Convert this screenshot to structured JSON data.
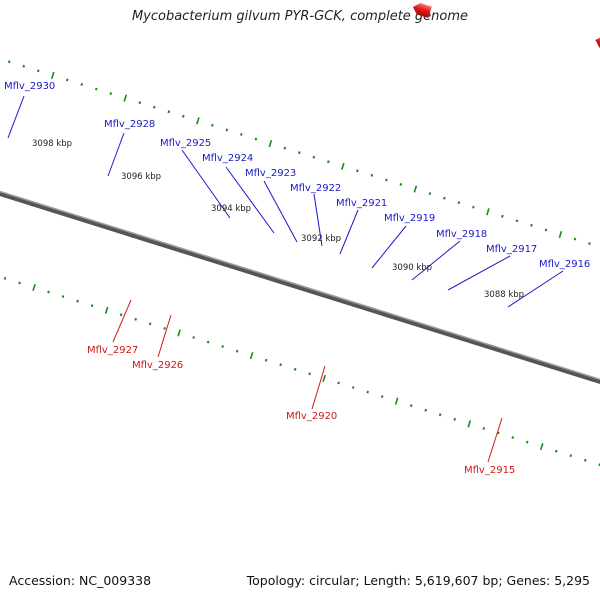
{
  "title": "Mycobacterium gilvum PYR-GCK, complete genome",
  "footer": {
    "accession": "Accession: NC_009338",
    "summary": "Topology: circular; Length: 5,619,607 bp; Genes: 5,295"
  },
  "colors": {
    "forward_gene": "#1a1ae6",
    "reverse_gene": "#e61a1a",
    "forward_label": "#1a1acc",
    "reverse_label": "#cc1a1a",
    "backbone": "#777777",
    "tick": "#1a8a1a"
  },
  "position_markers": [
    "3098 kbp",
    "3096 kbp",
    "3094 kbp",
    "3092 kbp",
    "3090 kbp",
    "3088 kbp"
  ],
  "gene_labels": {
    "forward": [
      "Mflv_2930",
      "Mflv_2928",
      "Mflv_2925",
      "Mflv_2924",
      "Mflv_2923",
      "Mflv_2922",
      "Mflv_2921",
      "Mflv_2919",
      "Mflv_2918",
      "Mflv_2917",
      "Mflv_2916"
    ],
    "reverse": [
      "Mflv_2927",
      "Mflv_2926",
      "Mflv_2920",
      "Mflv_2915"
    ]
  }
}
